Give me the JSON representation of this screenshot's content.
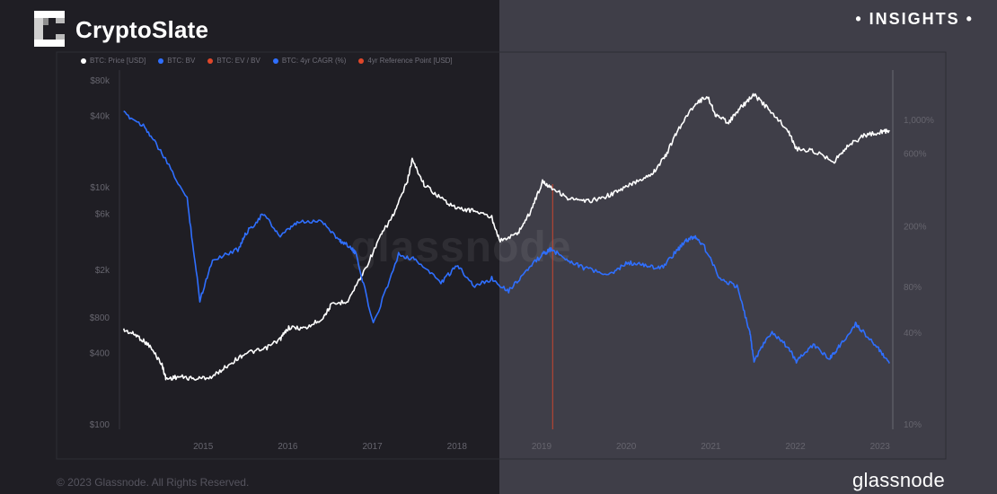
{
  "header": {
    "brand": "CryptoSlate",
    "insights": "• INSIGHTS •"
  },
  "footer": {
    "copyright": "© 2023 Glassnode. All Rights Reserved.",
    "provider_logo": "glassnode"
  },
  "watermark": "glassnode",
  "colors": {
    "price": "#ffffff",
    "bv": "#2f6fff",
    "ev_bv": "#e0472a",
    "cagr": "#2f6fff",
    "reference": "#e0472a",
    "axis_text": "#66656e"
  },
  "chart_data": {
    "type": "line",
    "legend": [
      {
        "label": "BTC: Price [USD]",
        "color": "#ffffff"
      },
      {
        "label": "BTC: BV",
        "color": "#2f6fff"
      },
      {
        "label": "BTC: EV / BV",
        "color": "#e0472a"
      },
      {
        "label": "BTC: 4yr CAGR (%)",
        "color": "#2f6fff"
      },
      {
        "label": "4yr Reference Point [USD]",
        "color": "#e0472a"
      }
    ],
    "legend_position": "top-left",
    "x_ticks": [
      "2015",
      "2016",
      "2017",
      "2018",
      "2019",
      "2020",
      "2021",
      "2022",
      "2023"
    ],
    "left_axis": {
      "scale": "log",
      "ticks": [
        "$80k",
        "$40k",
        "$10k",
        "$6k",
        "$2k",
        "$800",
        "$400",
        "$100"
      ],
      "tick_values": [
        80000,
        40000,
        10000,
        6000,
        2000,
        800,
        400,
        100
      ]
    },
    "right_axis": {
      "scale": "log",
      "ticks": [
        "1,000%",
        "600%",
        "200%",
        "80%",
        "40%",
        "10%"
      ],
      "tick_values": [
        1000,
        600,
        200,
        80,
        40,
        10
      ]
    },
    "reference_line_x": 2019.62,
    "series": [
      {
        "name": "BTC: Price [USD]",
        "axis": "left",
        "x": [
          2014.55,
          2014.7,
          2014.85,
          2015.0,
          2015.05,
          2015.2,
          2015.4,
          2015.6,
          2015.8,
          2016.0,
          2016.2,
          2016.4,
          2016.5,
          2016.7,
          2016.9,
          2017.0,
          2017.2,
          2017.4,
          2017.6,
          2017.75,
          2017.9,
          2017.96,
          2018.1,
          2018.3,
          2018.5,
          2018.7,
          2018.9,
          2019.0,
          2019.2,
          2019.35,
          2019.5,
          2019.6,
          2019.8,
          2020.0,
          2020.2,
          2020.4,
          2020.6,
          2020.8,
          2020.95,
          2021.1,
          2021.3,
          2021.45,
          2021.55,
          2021.7,
          2021.85,
          2022.0,
          2022.2,
          2022.4,
          2022.5,
          2022.7,
          2022.95,
          2023.1,
          2023.3,
          2023.5,
          2023.6
        ],
        "y": [
          620,
          560,
          460,
          320,
          240,
          250,
          240,
          250,
          320,
          400,
          420,
          520,
          650,
          640,
          780,
          1000,
          1100,
          2000,
          4000,
          6000,
          11000,
          17000,
          10500,
          8000,
          6500,
          6300,
          5500,
          3500,
          4000,
          6000,
          11000,
          10000,
          8000,
          7500,
          8000,
          9200,
          11000,
          13000,
          18000,
          30000,
          50000,
          58000,
          40000,
          35000,
          47000,
          60000,
          43000,
          30000,
          21000,
          20000,
          16500,
          22000,
          27000,
          29000,
          30000
        ]
      },
      {
        "name": "BTC: 4yr CAGR (%)",
        "axis": "right",
        "x": [
          2014.55,
          2014.8,
          2015.0,
          2015.3,
          2015.45,
          2015.6,
          2015.9,
          2016.0,
          2016.2,
          2016.4,
          2016.6,
          2016.9,
          2017.1,
          2017.2,
          2017.3,
          2017.5,
          2017.8,
          2018.0,
          2018.3,
          2018.5,
          2018.7,
          2018.9,
          2019.1,
          2019.3,
          2019.5,
          2019.6,
          2019.8,
          2020.0,
          2020.3,
          2020.5,
          2020.7,
          2020.9,
          2021.1,
          2021.2,
          2021.3,
          2021.4,
          2021.6,
          2021.8,
          2021.95,
          2022.0,
          2022.2,
          2022.4,
          2022.5,
          2022.7,
          2022.9,
          2023.0,
          2023.2,
          2023.3,
          2023.45,
          2023.6
        ],
        "y": [
          1100,
          900,
          600,
          300,
          65,
          120,
          140,
          180,
          240,
          170,
          210,
          215,
          160,
          150,
          130,
          45,
          130,
          120,
          85,
          110,
          80,
          90,
          75,
          100,
          130,
          140,
          120,
          105,
          95,
          115,
          110,
          105,
          140,
          160,
          170,
          150,
          90,
          80,
          40,
          26,
          40,
          32,
          26,
          33,
          27,
          32,
          45,
          40,
          32,
          25
        ]
      }
    ]
  }
}
